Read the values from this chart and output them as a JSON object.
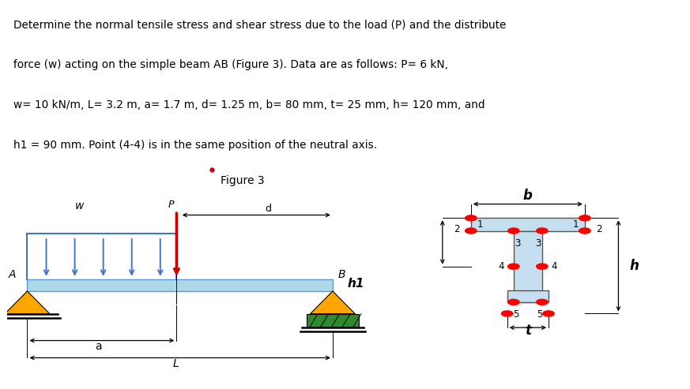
{
  "line1": "Determine the normal tensile stress and shear stress due to the load (P) and the distribute",
  "line2": "force (w) acting on the simple beam AB (Figure 3). Data are as follows: P= 6 kN,",
  "line3": "w= 10 kN/m, L= 3.2 m, a= 1.7 m, d= 1.25 m, b= 80 mm, t= 25 mm, h= 120 mm, and",
  "line4": "h1 = 90 mm. Point (4-4) is in the same position of the neutral axis.",
  "fig_label": "Figure 3",
  "beam_color": "#add8e6",
  "beam_edge_color": "#5b9bd5",
  "dist_load_color": "#4472c4",
  "point_load_color": "#cc0000",
  "support_color": "#ffa500",
  "roller_color": "#2d8a2d",
  "xsec_fill": "#c5dff0",
  "xsec_edge": "#555555",
  "dot_color": "#ff0000",
  "bg_color": "#ffffff"
}
